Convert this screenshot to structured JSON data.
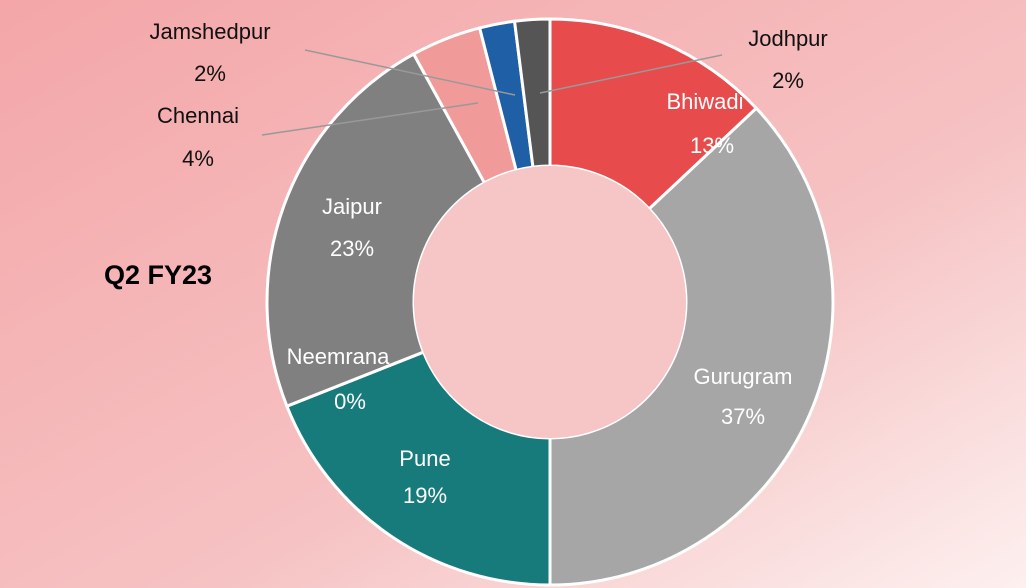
{
  "chart_data": {
    "type": "donut",
    "title": "Q2 FY23",
    "categories": [
      "Bhiwadi",
      "Gurugram",
      "Pune",
      "Neemrana",
      "Jaipur",
      "Chennai",
      "Jamshedpur",
      "Jodhpur"
    ],
    "values": [
      13,
      37,
      19,
      0,
      23,
      4,
      2,
      2
    ],
    "value_labels": [
      "13%",
      "37%",
      "19%",
      "0%",
      "23%",
      "4%",
      "2%",
      "2%"
    ],
    "colors": [
      "#e84b4b",
      "#a6a6a6",
      "#177b7b",
      "#999999",
      "#808080",
      "#f09a9a",
      "#1f5fa6",
      "#555555"
    ]
  }
}
